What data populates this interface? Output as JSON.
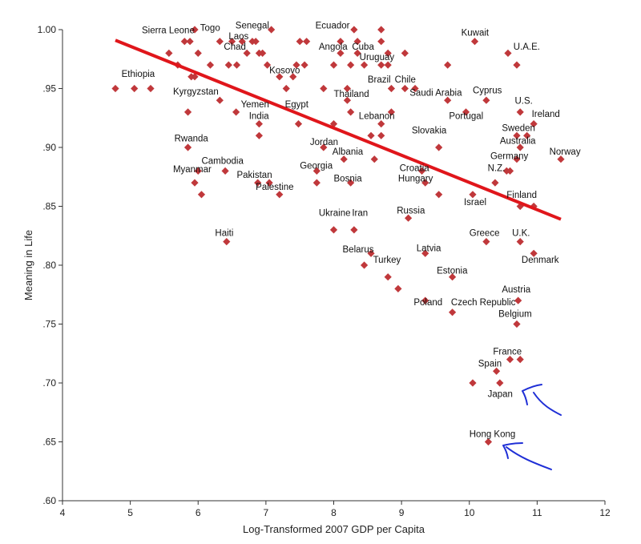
{
  "chart_data": {
    "type": "scatter",
    "title": "",
    "xlabel": "Log-Transformed 2007 GDP per Capita",
    "ylabel": "Meaning in Life",
    "xlim": [
      4,
      12
    ],
    "ylim": [
      0.6,
      1.0
    ],
    "x_ticks": [
      4,
      5,
      6,
      7,
      8,
      9,
      10,
      11,
      12
    ],
    "x_tick_labels": [
      "4",
      "5",
      "6",
      "7",
      "8",
      "9",
      "10",
      "11",
      "12"
    ],
    "y_ticks": [
      0.6,
      0.65,
      0.7,
      0.75,
      0.8,
      0.85,
      0.9,
      0.95,
      1.0
    ],
    "y_tick_labels": [
      ".60",
      ".65",
      ".70",
      ".75",
      ".80",
      ".85",
      ".90",
      ".95",
      "1.00"
    ],
    "grid": false,
    "marker_color": "#c0383b",
    "trend_line": {
      "x": [
        4.78,
        11.35
      ],
      "y": [
        0.991,
        0.839
      ],
      "color": "#e0161b"
    },
    "annotation_color": "#1f2fd6",
    "points": [
      {
        "x": 4.78,
        "y": 0.95
      },
      {
        "x": 5.06,
        "y": 0.95
      },
      {
        "x": 5.3,
        "y": 0.95
      },
      {
        "x": 5.57,
        "y": 0.98
      },
      {
        "x": 5.7,
        "y": 0.97
      },
      {
        "x": 5.8,
        "y": 0.99
      },
      {
        "x": 5.88,
        "y": 0.99
      },
      {
        "x": 5.95,
        "y": 1.0
      },
      {
        "x": 5.9,
        "y": 0.96
      },
      {
        "x": 5.95,
        "y": 0.96
      },
      {
        "x": 6.0,
        "y": 0.98
      },
      {
        "x": 6.18,
        "y": 0.97
      },
      {
        "x": 6.32,
        "y": 0.99
      },
      {
        "x": 6.45,
        "y": 0.97
      },
      {
        "x": 6.5,
        "y": 0.99
      },
      {
        "x": 6.57,
        "y": 0.97
      },
      {
        "x": 6.65,
        "y": 0.99
      },
      {
        "x": 6.72,
        "y": 0.98
      },
      {
        "x": 6.8,
        "y": 0.99
      },
      {
        "x": 6.85,
        "y": 0.99
      },
      {
        "x": 6.9,
        "y": 0.98
      },
      {
        "x": 6.95,
        "y": 0.98
      },
      {
        "x": 7.02,
        "y": 0.97
      },
      {
        "x": 7.08,
        "y": 1.0
      },
      {
        "x": 7.2,
        "y": 0.96
      },
      {
        "x": 7.3,
        "y": 0.95
      },
      {
        "x": 7.4,
        "y": 0.96
      },
      {
        "x": 7.45,
        "y": 0.97
      },
      {
        "x": 7.5,
        "y": 0.99
      },
      {
        "x": 7.57,
        "y": 0.97
      },
      {
        "x": 7.6,
        "y": 0.99
      },
      {
        "x": 5.85,
        "y": 0.93
      },
      {
        "x": 6.32,
        "y": 0.94
      },
      {
        "x": 6.56,
        "y": 0.93
      },
      {
        "x": 6.9,
        "y": 0.92
      },
      {
        "x": 6.9,
        "y": 0.91
      },
      {
        "x": 7.48,
        "y": 0.92
      },
      {
        "x": 7.85,
        "y": 0.95
      },
      {
        "x": 8.0,
        "y": 0.92
      },
      {
        "x": 8.1,
        "y": 0.99
      },
      {
        "x": 8.0,
        "y": 0.97
      },
      {
        "x": 8.1,
        "y": 0.98
      },
      {
        "x": 8.25,
        "y": 0.97
      },
      {
        "x": 8.3,
        "y": 1.0
      },
      {
        "x": 8.35,
        "y": 0.99
      },
      {
        "x": 8.45,
        "y": 0.97
      },
      {
        "x": 8.35,
        "y": 0.98
      },
      {
        "x": 8.7,
        "y": 1.0
      },
      {
        "x": 8.7,
        "y": 0.99
      },
      {
        "x": 8.7,
        "y": 0.97
      },
      {
        "x": 8.8,
        "y": 0.97
      },
      {
        "x": 8.8,
        "y": 0.98
      },
      {
        "x": 8.85,
        "y": 0.95
      },
      {
        "x": 9.05,
        "y": 0.98
      },
      {
        "x": 9.05,
        "y": 0.95
      },
      {
        "x": 9.2,
        "y": 0.95
      },
      {
        "x": 8.2,
        "y": 0.95
      },
      {
        "x": 8.2,
        "y": 0.94
      },
      {
        "x": 8.25,
        "y": 0.93
      },
      {
        "x": 8.85,
        "y": 0.93
      },
      {
        "x": 8.55,
        "y": 0.91
      },
      {
        "x": 8.7,
        "y": 0.92
      },
      {
        "x": 8.7,
        "y": 0.91
      },
      {
        "x": 9.68,
        "y": 0.97
      },
      {
        "x": 9.68,
        "y": 0.94
      },
      {
        "x": 10.08,
        "y": 0.99
      },
      {
        "x": 10.25,
        "y": 0.94
      },
      {
        "x": 9.95,
        "y": 0.93
      },
      {
        "x": 9.55,
        "y": 0.9
      },
      {
        "x": 10.57,
        "y": 0.98
      },
      {
        "x": 10.7,
        "y": 0.97
      },
      {
        "x": 10.75,
        "y": 0.93
      },
      {
        "x": 10.7,
        "y": 0.91
      },
      {
        "x": 10.75,
        "y": 0.9
      },
      {
        "x": 10.85,
        "y": 0.91
      },
      {
        "x": 10.95,
        "y": 0.92
      },
      {
        "x": 11.35,
        "y": 0.89
      },
      {
        "x": 10.55,
        "y": 0.88
      },
      {
        "x": 10.6,
        "y": 0.88
      },
      {
        "x": 10.7,
        "y": 0.89
      },
      {
        "x": 10.38,
        "y": 0.87
      },
      {
        "x": 10.75,
        "y": 0.85
      },
      {
        "x": 10.95,
        "y": 0.85
      },
      {
        "x": 10.05,
        "y": 0.86
      },
      {
        "x": 5.85,
        "y": 0.9
      },
      {
        "x": 5.95,
        "y": 0.87
      },
      {
        "x": 6.0,
        "y": 0.88
      },
      {
        "x": 6.05,
        "y": 0.86
      },
      {
        "x": 6.4,
        "y": 0.88
      },
      {
        "x": 6.88,
        "y": 0.87
      },
      {
        "x": 7.05,
        "y": 0.87
      },
      {
        "x": 7.2,
        "y": 0.86
      },
      {
        "x": 7.75,
        "y": 0.87
      },
      {
        "x": 7.75,
        "y": 0.88
      },
      {
        "x": 7.85,
        "y": 0.9
      },
      {
        "x": 8.15,
        "y": 0.89
      },
      {
        "x": 8.25,
        "y": 0.87
      },
      {
        "x": 8.6,
        "y": 0.89
      },
      {
        "x": 9.3,
        "y": 0.88
      },
      {
        "x": 9.35,
        "y": 0.87
      },
      {
        "x": 9.55,
        "y": 0.86
      },
      {
        "x": 9.1,
        "y": 0.84
      },
      {
        "x": 6.42,
        "y": 0.82
      },
      {
        "x": 8.0,
        "y": 0.83
      },
      {
        "x": 8.3,
        "y": 0.83
      },
      {
        "x": 8.55,
        "y": 0.81
      },
      {
        "x": 8.45,
        "y": 0.8
      },
      {
        "x": 8.8,
        "y": 0.79
      },
      {
        "x": 8.95,
        "y": 0.78
      },
      {
        "x": 9.35,
        "y": 0.81
      },
      {
        "x": 9.75,
        "y": 0.79
      },
      {
        "x": 9.35,
        "y": 0.77
      },
      {
        "x": 9.75,
        "y": 0.76
      },
      {
        "x": 10.25,
        "y": 0.82
      },
      {
        "x": 10.75,
        "y": 0.82
      },
      {
        "x": 10.95,
        "y": 0.81
      },
      {
        "x": 10.72,
        "y": 0.77
      },
      {
        "x": 10.7,
        "y": 0.75
      },
      {
        "x": 10.6,
        "y": 0.72
      },
      {
        "x": 10.75,
        "y": 0.72
      },
      {
        "x": 10.4,
        "y": 0.71
      },
      {
        "x": 10.05,
        "y": 0.7
      },
      {
        "x": 10.45,
        "y": 0.7
      },
      {
        "x": 10.28,
        "y": 0.65
      }
    ],
    "labels": [
      {
        "text": "Sierra Leone",
        "x": 5.17,
        "y": 0.997
      },
      {
        "text": "Togo",
        "x": 6.03,
        "y": 0.999
      },
      {
        "text": "Senegal",
        "x": 6.55,
        "y": 1.001
      },
      {
        "text": "Ecuador",
        "x": 7.73,
        "y": 1.001
      },
      {
        "text": "Kuwait",
        "x": 9.88,
        "y": 0.995
      },
      {
        "text": "Laos",
        "x": 6.45,
        "y": 0.992
      },
      {
        "text": "Chad",
        "x": 6.38,
        "y": 0.983
      },
      {
        "text": "Angola",
        "x": 7.78,
        "y": 0.983
      },
      {
        "text": "Cuba",
        "x": 8.27,
        "y": 0.983
      },
      {
        "text": "U.A.E.",
        "x": 10.65,
        "y": 0.983
      },
      {
        "text": "Uruguay",
        "x": 8.38,
        "y": 0.974
      },
      {
        "text": "Kosovo",
        "x": 7.05,
        "y": 0.963
      },
      {
        "text": "Ethiopia",
        "x": 4.87,
        "y": 0.96
      },
      {
        "text": "Brazil",
        "x": 8.5,
        "y": 0.955
      },
      {
        "text": "Chile",
        "x": 8.9,
        "y": 0.955
      },
      {
        "text": "Kyrgyzstan",
        "x": 5.63,
        "y": 0.945
      },
      {
        "text": "Thailand",
        "x": 8.0,
        "y": 0.943
      },
      {
        "text": "Saudi Arabia",
        "x": 9.12,
        "y": 0.944
      },
      {
        "text": "Cyprus",
        "x": 10.05,
        "y": 0.946
      },
      {
        "text": "U.S.",
        "x": 10.67,
        "y": 0.937
      },
      {
        "text": "Yemen",
        "x": 6.63,
        "y": 0.934
      },
      {
        "text": "Egypt",
        "x": 7.28,
        "y": 0.934
      },
      {
        "text": "India",
        "x": 6.75,
        "y": 0.924
      },
      {
        "text": "Lebanon",
        "x": 8.37,
        "y": 0.924
      },
      {
        "text": "Portugal",
        "x": 9.7,
        "y": 0.924
      },
      {
        "text": "Ireland",
        "x": 10.92,
        "y": 0.926
      },
      {
        "text": "Sweden",
        "x": 10.48,
        "y": 0.914
      },
      {
        "text": "Slovakia",
        "x": 9.15,
        "y": 0.912
      },
      {
        "text": "Rwanda",
        "x": 5.65,
        "y": 0.905
      },
      {
        "text": "Australia",
        "x": 10.45,
        "y": 0.903
      },
      {
        "text": "Jordan",
        "x": 7.65,
        "y": 0.902
      },
      {
        "text": "Albania",
        "x": 7.98,
        "y": 0.894
      },
      {
        "text": "Norway",
        "x": 11.18,
        "y": 0.894
      },
      {
        "text": "Germany",
        "x": 10.31,
        "y": 0.89
      },
      {
        "text": "Cambodia",
        "x": 6.05,
        "y": 0.886
      },
      {
        "text": "Georgia",
        "x": 7.5,
        "y": 0.882
      },
      {
        "text": "Myanmar",
        "x": 5.63,
        "y": 0.879
      },
      {
        "text": "N.Z.",
        "x": 10.27,
        "y": 0.88
      },
      {
        "text": "Croatia",
        "x": 8.97,
        "y": 0.88
      },
      {
        "text": "Pakistan",
        "x": 6.57,
        "y": 0.874
      },
      {
        "text": "Bosnia",
        "x": 8.0,
        "y": 0.871
      },
      {
        "text": "Hungary",
        "x": 8.95,
        "y": 0.871
      },
      {
        "text": "Palestine",
        "x": 6.85,
        "y": 0.864
      },
      {
        "text": "Finland",
        "x": 10.55,
        "y": 0.857
      },
      {
        "text": "Israel",
        "x": 9.92,
        "y": 0.851
      },
      {
        "text": "Russia",
        "x": 8.93,
        "y": 0.844
      },
      {
        "text": "Ukraine",
        "x": 7.78,
        "y": 0.842
      },
      {
        "text": "Iran",
        "x": 8.27,
        "y": 0.842
      },
      {
        "text": "Haiti",
        "x": 6.25,
        "y": 0.825
      },
      {
        "text": "Greece",
        "x": 10.0,
        "y": 0.825
      },
      {
        "text": "U.K.",
        "x": 10.63,
        "y": 0.825
      },
      {
        "text": "Belarus",
        "x": 8.13,
        "y": 0.811
      },
      {
        "text": "Latvia",
        "x": 9.22,
        "y": 0.812
      },
      {
        "text": "Denmark",
        "x": 10.77,
        "y": 0.802
      },
      {
        "text": "Turkey",
        "x": 8.58,
        "y": 0.802
      },
      {
        "text": "Estonia",
        "x": 9.52,
        "y": 0.793
      },
      {
        "text": "Austria",
        "x": 10.48,
        "y": 0.777
      },
      {
        "text": "Poland",
        "x": 9.18,
        "y": 0.766
      },
      {
        "text": "Czech Republic",
        "x": 9.73,
        "y": 0.766
      },
      {
        "text": "Belgium",
        "x": 10.43,
        "y": 0.756
      },
      {
        "text": "France",
        "x": 10.35,
        "y": 0.724
      },
      {
        "text": "Spain",
        "x": 10.13,
        "y": 0.714
      },
      {
        "text": "Japan",
        "x": 10.27,
        "y": 0.688
      },
      {
        "text": "Hong Kong",
        "x": 10.0,
        "y": 0.654
      }
    ]
  }
}
